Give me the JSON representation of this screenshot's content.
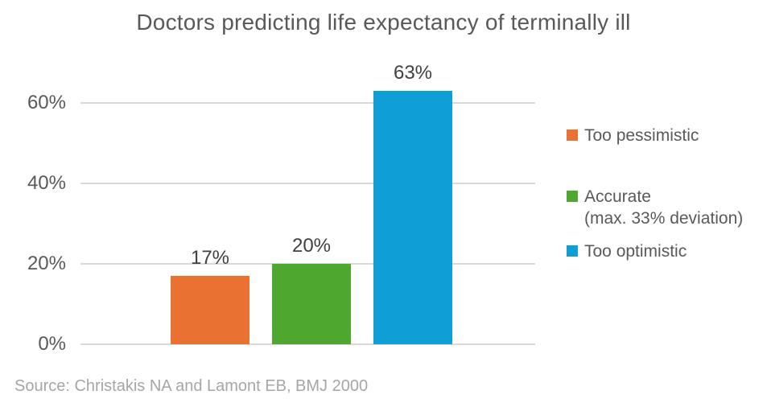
{
  "title": "Doctors predicting life expectancy of terminally ill",
  "source_note": "Source: Christakis NA and Lamont EB, BMJ 2000",
  "colors": {
    "orange": "#E97132",
    "green": "#4EA72E",
    "blue": "#0F9ED5",
    "gridline": "#D9D9D9",
    "title_text": "#595959",
    "axis_text": "#595959",
    "data_label_text": "#404040",
    "source_text": "#A6A6A6",
    "background": "#FFFFFF"
  },
  "chart_data": {
    "type": "bar",
    "title": "Doctors predicting life expectancy of terminally ill",
    "categories": [
      "Too pessimistic",
      "Accurate (max. 33% deviation)",
      "Too optimistic"
    ],
    "values": [
      17,
      20,
      63
    ],
    "unit": "%",
    "data_labels": [
      "17%",
      "20%",
      "63%"
    ],
    "series_colors": [
      "#E97132",
      "#4EA72E",
      "#0F9ED5"
    ],
    "xlabel": "",
    "ylabel": "",
    "ylim": [
      0,
      66
    ],
    "yticks": [
      {
        "value": 0,
        "label": "0%"
      },
      {
        "value": 20,
        "label": "20%"
      },
      {
        "value": 40,
        "label": "40%"
      },
      {
        "value": 60,
        "label": "60%"
      }
    ],
    "grid": "horizontal",
    "legend_position": "right",
    "legend": [
      {
        "lines": [
          "Too pessimistic"
        ],
        "color": "#E97132"
      },
      {
        "lines": [
          "Accurate",
          "(max. 33% deviation)"
        ],
        "color": "#4EA72E"
      },
      {
        "lines": [
          "Too optimistic"
        ],
        "color": "#0F9ED5"
      }
    ]
  }
}
